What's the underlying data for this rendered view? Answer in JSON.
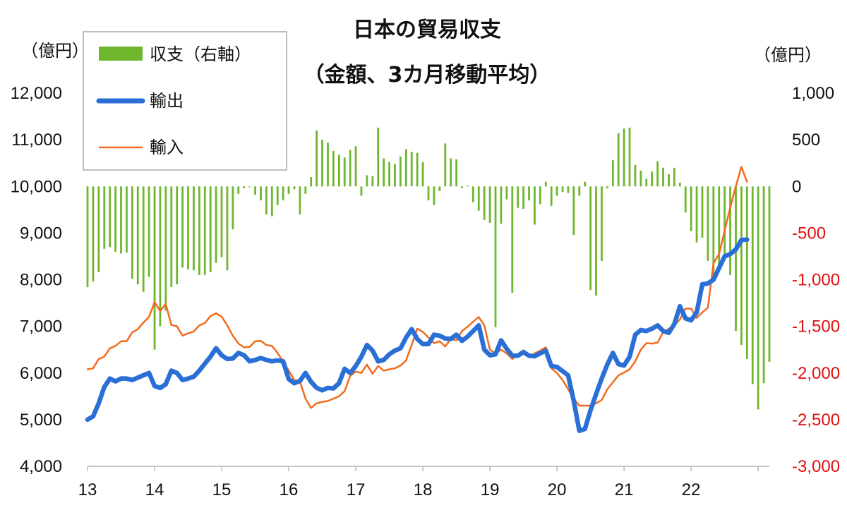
{
  "chart_data": {
    "type": "bar-line combo",
    "title": "日本の貿易収支",
    "subtitle": "（金額、3カ月移動平均）",
    "left_axis_unit": "（億円）",
    "right_axis_unit": "（億円）",
    "left_ylim": [
      4000,
      12000
    ],
    "right_ylim": [
      -3000,
      1000
    ],
    "left_ticks": [
      "4,000",
      "5,000",
      "6,000",
      "7,000",
      "8,000",
      "9,000",
      "10,000",
      "11,000",
      "12,000"
    ],
    "right_ticks": [
      "-3,000",
      "-2,500",
      "-2,000",
      "-1,500",
      "-1,000",
      "-500",
      "0",
      "500",
      "1,000"
    ],
    "right_negative_color": "#e01010",
    "x_labels": [
      "13",
      "14",
      "15",
      "16",
      "17",
      "18",
      "19",
      "20",
      "21",
      "22"
    ],
    "legend": {
      "balance": "収支（右軸）",
      "exports": "輸出",
      "imports": "輸入"
    },
    "series": [
      {
        "name": "収支（右軸）",
        "axis": "right",
        "kind": "bar",
        "color": "#6fb62d",
        "values": [
          -1080,
          -1020,
          -920,
          -670,
          -650,
          -700,
          -720,
          -710,
          -990,
          -1050,
          -1130,
          -970,
          -1750,
          -1500,
          -1330,
          -1080,
          -1050,
          -870,
          -890,
          -900,
          -950,
          -950,
          -920,
          -820,
          -760,
          -900,
          -460,
          -80,
          -20,
          -10,
          -90,
          -150,
          -300,
          -320,
          -200,
          -150,
          -80,
          -30,
          -300,
          -80,
          100,
          600,
          500,
          470,
          380,
          340,
          310,
          390,
          430,
          -100,
          120,
          110,
          630,
          300,
          260,
          240,
          320,
          400,
          370,
          360,
          260,
          -150,
          -200,
          -50,
          460,
          300,
          290,
          -20,
          10,
          -170,
          -260,
          -360,
          -390,
          -1510,
          -400,
          -140,
          -1140,
          -230,
          -240,
          -150,
          -410,
          -190,
          50,
          -210,
          -100,
          -60,
          -70,
          -520,
          -100,
          50,
          -1110,
          -1170,
          -800,
          -20,
          280,
          570,
          620,
          630,
          230,
          170,
          80,
          160,
          270,
          200,
          130,
          200,
          40,
          -280,
          -480,
          -600,
          -550,
          -800,
          -1000,
          -900,
          -780,
          -950,
          -1550,
          -1700,
          -1850,
          -2120,
          -2390,
          -2110,
          -1880
        ]
      },
      {
        "name": "輸出",
        "axis": "left",
        "kind": "line",
        "color": "#2a6fd6",
        "values": [
          5000,
          5070,
          5350,
          5700,
          5880,
          5820,
          5880,
          5880,
          5850,
          5900,
          5950,
          6000,
          5720,
          5680,
          5760,
          6050,
          6000,
          5850,
          5880,
          5920,
          6050,
          6200,
          6350,
          6530,
          6380,
          6300,
          6310,
          6430,
          6380,
          6250,
          6280,
          6320,
          6280,
          6250,
          6270,
          6250,
          5870,
          5780,
          5830,
          6000,
          5810,
          5680,
          5630,
          5680,
          5670,
          5780,
          6090,
          6000,
          6150,
          6350,
          6600,
          6480,
          6250,
          6280,
          6400,
          6480,
          6530,
          6760,
          6940,
          6730,
          6620,
          6620,
          6820,
          6800,
          6740,
          6730,
          6820,
          6690,
          6780,
          6900,
          7020,
          6500,
          6380,
          6400,
          6700,
          6520,
          6370,
          6370,
          6450,
          6370,
          6360,
          6420,
          6480,
          6150,
          6130,
          6040,
          5950,
          5400,
          4760,
          4800,
          5200,
          5550,
          5880,
          6180,
          6430,
          6190,
          6160,
          6350,
          6820,
          6920,
          6900,
          6950,
          7020,
          6900,
          6860,
          7050,
          7430,
          7170,
          7130,
          7300,
          7900,
          7920,
          8000,
          8250,
          8500,
          8550,
          8650,
          8850,
          8860
        ]
      },
      {
        "name": "輸入",
        "axis": "left",
        "kind": "line",
        "color": "#f26b1d",
        "values": [
          6080,
          6100,
          6300,
          6350,
          6530,
          6580,
          6680,
          6680,
          6870,
          6940,
          7080,
          7200,
          7520,
          7330,
          7480,
          7030,
          7000,
          6800,
          6850,
          6890,
          7020,
          7070,
          7220,
          7280,
          7210,
          7020,
          6800,
          6630,
          6550,
          6560,
          6680,
          6690,
          6600,
          6580,
          6430,
          6250,
          6050,
          5850,
          5820,
          5450,
          5250,
          5350,
          5380,
          5400,
          5450,
          5500,
          5610,
          5940,
          6030,
          6000,
          6180,
          5980,
          6150,
          6050,
          6080,
          6100,
          6160,
          6270,
          6600,
          6950,
          6880,
          6760,
          6640,
          6680,
          6570,
          6730,
          6700,
          6900,
          6990,
          7100,
          7200,
          7020,
          6500,
          6420,
          6500,
          6420,
          6300,
          6400,
          6450,
          6350,
          6420,
          6480,
          6550,
          6100,
          6000,
          5850,
          5650,
          5450,
          5300,
          5300,
          5300,
          5350,
          5420,
          5650,
          5800,
          5950,
          6010,
          6080,
          6250,
          6500,
          6640,
          6630,
          6650,
          6880,
          6950,
          7020,
          7150,
          7380,
          7380,
          7180,
          7300,
          7400,
          8350,
          8550,
          9050,
          9550,
          10000,
          10420,
          10100
        ]
      }
    ]
  }
}
